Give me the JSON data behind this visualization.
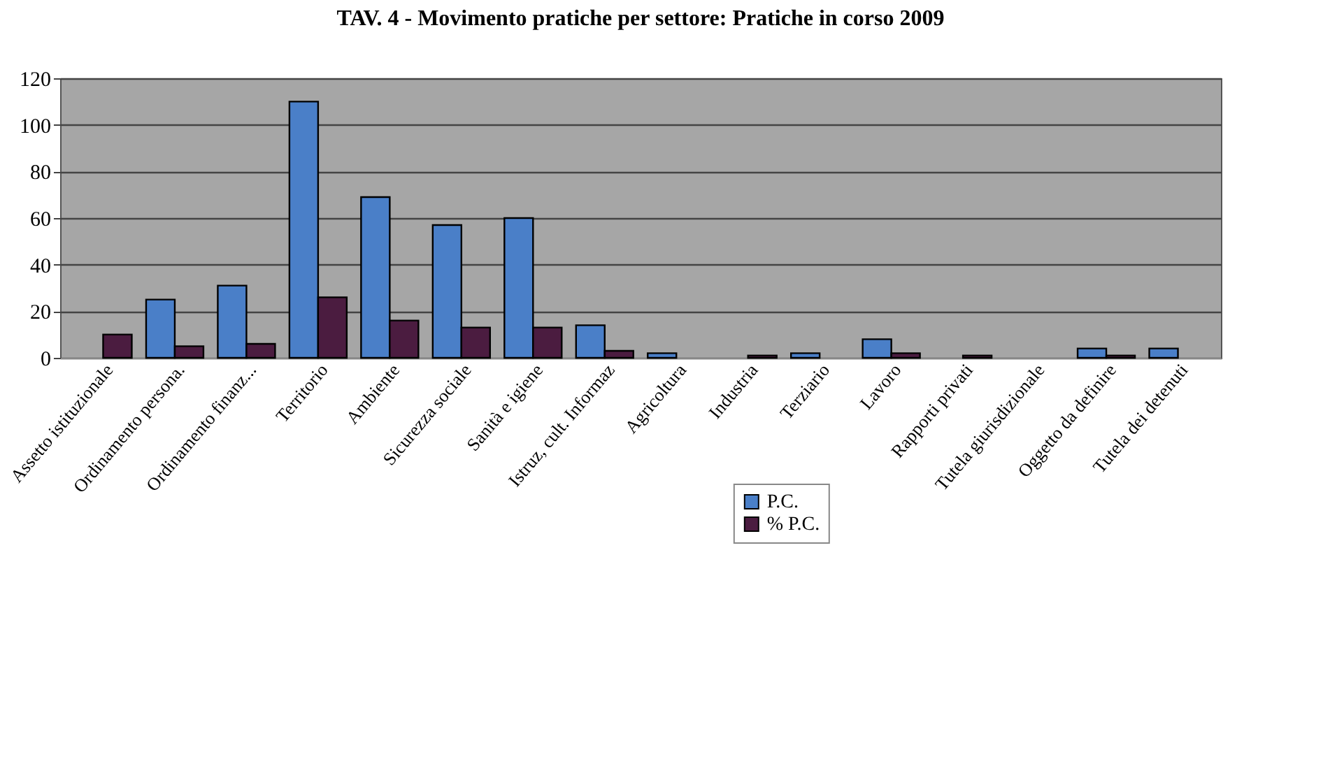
{
  "chart_data": {
    "type": "bar",
    "title": "TAV. 4 - Movimento pratiche per settore: Pratiche in corso 2009",
    "categories": [
      "Assetto istituzionale",
      "Ordinamento persona.",
      "Ordinamento finanz...",
      "Territorio",
      "Ambiente",
      "Sicurezza sociale",
      "Sanità e igiene",
      "Istruz, cult. Informaz",
      "Agricoltura",
      "Industria",
      "Terziario",
      "Lavoro",
      "Rapporti privati",
      "Tutela giurisdizionale",
      "Oggetto da definire",
      "Tutela dei detenuti"
    ],
    "series": [
      {
        "name": "P.C.",
        "color": "#4a7fc8",
        "values": [
          0,
          25,
          31,
          110,
          69,
          57,
          60,
          14,
          2,
          0,
          2,
          8,
          0,
          0,
          4,
          4
        ]
      },
      {
        "name": "% P.C.",
        "color": "#4b1c40",
        "values": [
          10,
          5,
          6,
          26,
          16,
          13,
          13,
          3,
          0,
          1,
          0,
          2,
          1,
          0,
          1,
          0
        ]
      }
    ],
    "ylim": [
      0,
      120
    ],
    "yticks": [
      0,
      20,
      40,
      60,
      80,
      100,
      120
    ],
    "grid": "y",
    "legend": "bottom"
  }
}
